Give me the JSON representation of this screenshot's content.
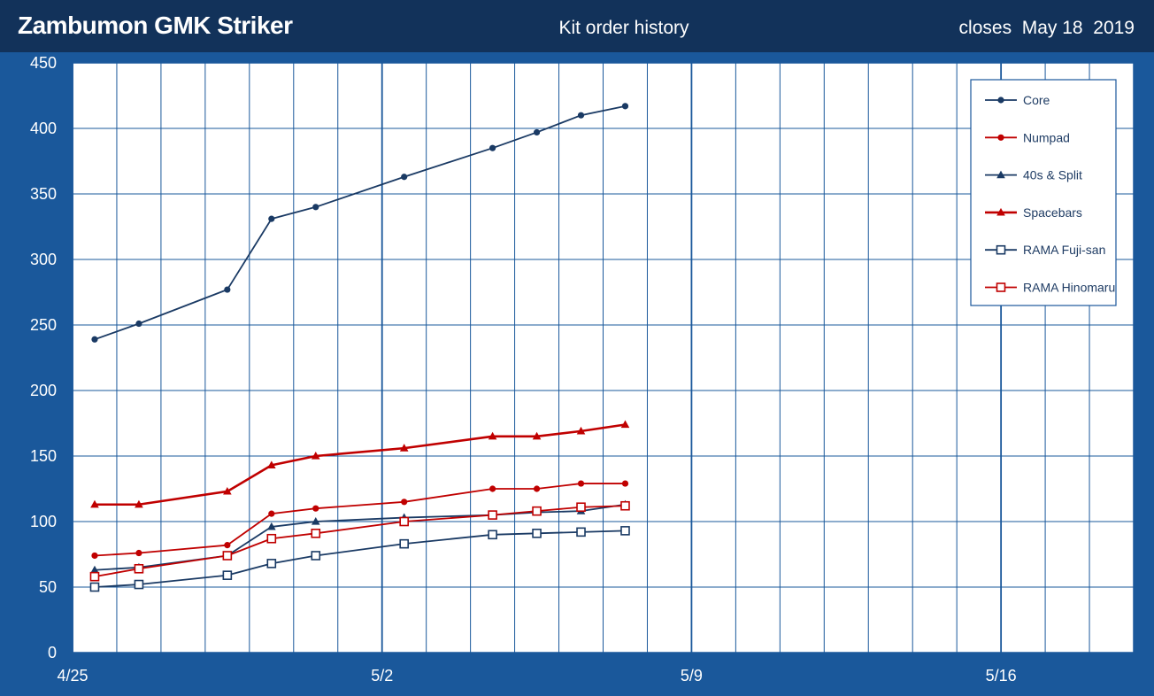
{
  "header": {
    "title": "Zambumon GMK Striker",
    "subtitle": "Kit order history",
    "closes": "closes  May 18  2019"
  },
  "colors": {
    "background": "#1a589b",
    "header": "#12325a",
    "plot": "#ffffff",
    "grid": "#1a589b",
    "navy": "#1a3a64",
    "red": "#c00000"
  },
  "chart_data": {
    "type": "line",
    "title": "Kit order history",
    "ylim": [
      0,
      450
    ],
    "yticks": [
      0,
      50,
      100,
      150,
      200,
      250,
      300,
      350,
      400,
      450
    ],
    "xrange": [
      "2019-04-25",
      "2019-05-19"
    ],
    "xticks": [
      "4/25",
      "5/2",
      "5/9",
      "5/16"
    ],
    "grid": true,
    "legend_position": "top-right",
    "series": [
      {
        "name": "Core",
        "color": "#1a3a64",
        "marker": "circle",
        "width": 1.8,
        "points": [
          [
            "2019-04-25T12:00",
            239
          ],
          [
            "2019-04-26T12:00",
            251
          ],
          [
            "2019-04-28T12:00",
            277
          ],
          [
            "2019-04-29T12:00",
            331
          ],
          [
            "2019-04-30T12:00",
            340
          ],
          [
            "2019-05-02T12:00",
            363
          ],
          [
            "2019-05-04T12:00",
            385
          ],
          [
            "2019-05-05T12:00",
            397
          ],
          [
            "2019-05-06T12:00",
            410
          ],
          [
            "2019-05-07T12:00",
            417
          ]
        ]
      },
      {
        "name": "Numpad",
        "color": "#c00000",
        "marker": "circle",
        "width": 1.8,
        "points": [
          [
            "2019-04-25T12:00",
            74
          ],
          [
            "2019-04-26T12:00",
            76
          ],
          [
            "2019-04-28T12:00",
            82
          ],
          [
            "2019-04-29T12:00",
            106
          ],
          [
            "2019-04-30T12:00",
            110
          ],
          [
            "2019-05-02T12:00",
            115
          ],
          [
            "2019-05-04T12:00",
            125
          ],
          [
            "2019-05-05T12:00",
            125
          ],
          [
            "2019-05-06T12:00",
            129
          ],
          [
            "2019-05-07T12:00",
            129
          ]
        ]
      },
      {
        "name": "40s & Split",
        "color": "#1a3a64",
        "marker": "triangle",
        "width": 1.8,
        "points": [
          [
            "2019-04-25T12:00",
            63
          ],
          [
            "2019-04-26T12:00",
            65
          ],
          [
            "2019-04-28T12:00",
            74
          ],
          [
            "2019-04-29T12:00",
            96
          ],
          [
            "2019-04-30T12:00",
            100
          ],
          [
            "2019-05-02T12:00",
            103
          ],
          [
            "2019-05-04T12:00",
            105
          ],
          [
            "2019-05-05T12:00",
            107
          ],
          [
            "2019-05-06T12:00",
            108
          ],
          [
            "2019-05-07T12:00",
            113
          ]
        ]
      },
      {
        "name": "Spacebars",
        "color": "#c00000",
        "marker": "triangle",
        "width": 2.6,
        "points": [
          [
            "2019-04-25T12:00",
            113
          ],
          [
            "2019-04-26T12:00",
            113
          ],
          [
            "2019-04-28T12:00",
            123
          ],
          [
            "2019-04-29T12:00",
            143
          ],
          [
            "2019-04-30T12:00",
            150
          ],
          [
            "2019-05-02T12:00",
            156
          ],
          [
            "2019-05-04T12:00",
            165
          ],
          [
            "2019-05-05T12:00",
            165
          ],
          [
            "2019-05-06T12:00",
            169
          ],
          [
            "2019-05-07T12:00",
            174
          ]
        ]
      },
      {
        "name": "RAMA Fuji-san",
        "color": "#1a3a64",
        "marker": "square",
        "width": 1.8,
        "points": [
          [
            "2019-04-25T12:00",
            50
          ],
          [
            "2019-04-26T12:00",
            52
          ],
          [
            "2019-04-28T12:00",
            59
          ],
          [
            "2019-04-29T12:00",
            68
          ],
          [
            "2019-04-30T12:00",
            74
          ],
          [
            "2019-05-02T12:00",
            83
          ],
          [
            "2019-05-04T12:00",
            90
          ],
          [
            "2019-05-05T12:00",
            91
          ],
          [
            "2019-05-06T12:00",
            92
          ],
          [
            "2019-05-07T12:00",
            93
          ]
        ]
      },
      {
        "name": "RAMA Hinomaru",
        "color": "#c00000",
        "marker": "square",
        "width": 1.8,
        "points": [
          [
            "2019-04-25T12:00",
            58
          ],
          [
            "2019-04-26T12:00",
            64
          ],
          [
            "2019-04-28T12:00",
            74
          ],
          [
            "2019-04-29T12:00",
            87
          ],
          [
            "2019-04-30T12:00",
            91
          ],
          [
            "2019-05-02T12:00",
            100
          ],
          [
            "2019-05-04T12:00",
            105
          ],
          [
            "2019-05-05T12:00",
            108
          ],
          [
            "2019-05-06T12:00",
            111
          ],
          [
            "2019-05-07T12:00",
            112
          ]
        ]
      }
    ]
  }
}
